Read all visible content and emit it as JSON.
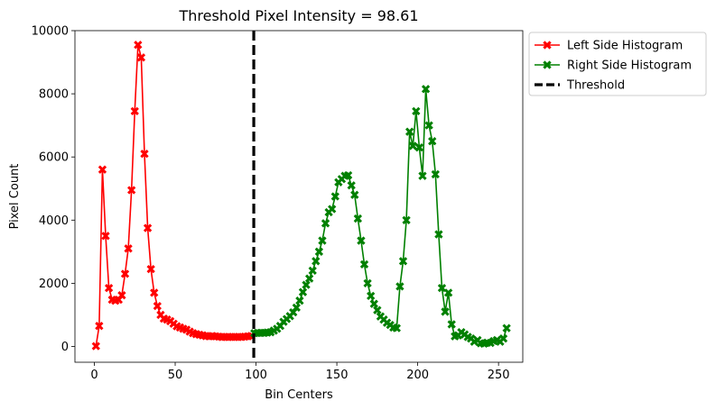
{
  "chart_data": {
    "type": "line",
    "title": "Threshold Pixel Intensity = 98.61",
    "xlabel": "Bin Centers",
    "ylabel": "Pixel Count",
    "xlim": [
      -12,
      265
    ],
    "ylim": [
      -500,
      10000
    ],
    "xticks": [
      0,
      50,
      100,
      150,
      200,
      250
    ],
    "yticks": [
      0,
      2000,
      4000,
      6000,
      8000,
      10000
    ],
    "threshold": 98.61,
    "legend_position": "outside-upper-right",
    "colors": {
      "left": "#ff0000",
      "right": "#008000",
      "threshold": "#000000"
    },
    "series": [
      {
        "name": "Left Side Histogram",
        "color": "#ff0000",
        "marker": "X",
        "x": [
          1,
          3,
          5,
          7,
          9,
          11,
          13,
          15,
          17,
          19,
          21,
          23,
          25,
          27,
          29,
          31,
          33,
          35,
          37,
          39,
          41,
          43,
          45,
          47,
          49,
          51,
          53,
          55,
          57,
          59,
          61,
          63,
          65,
          67,
          69,
          71,
          73,
          75,
          77,
          79,
          81,
          83,
          85,
          87,
          89,
          91,
          93,
          95,
          97
        ],
        "y": [
          10,
          650,
          5600,
          3500,
          1850,
          1480,
          1450,
          1480,
          1620,
          2300,
          3100,
          4950,
          7450,
          9550,
          9150,
          6100,
          3750,
          2450,
          1700,
          1280,
          1000,
          880,
          850,
          800,
          720,
          640,
          600,
          560,
          530,
          470,
          420,
          390,
          370,
          350,
          330,
          320,
          330,
          320,
          310,
          300,
          300,
          300,
          300,
          300,
          300,
          300,
          310,
          320,
          330
        ]
      },
      {
        "name": "Right Side Histogram",
        "color": "#008000",
        "marker": "X",
        "x": [
          99,
          101,
          103,
          105,
          107,
          109,
          111,
          113,
          115,
          117,
          119,
          121,
          123,
          125,
          127,
          129,
          131,
          133,
          135,
          137,
          139,
          141,
          143,
          145,
          147,
          149,
          151,
          153,
          155,
          157,
          159,
          161,
          163,
          165,
          167,
          169,
          171,
          173,
          175,
          177,
          179,
          181,
          183,
          185,
          187,
          189,
          191,
          193,
          195,
          197,
          199,
          201,
          203,
          205,
          207,
          209,
          211,
          213,
          215,
          217,
          219,
          221,
          223,
          225,
          227,
          229,
          231,
          233,
          235,
          237,
          239,
          241,
          243,
          245,
          247,
          249,
          251,
          253,
          255
        ],
        "y": [
          420,
          430,
          430,
          430,
          440,
          450,
          500,
          560,
          650,
          780,
          870,
          960,
          1080,
          1230,
          1450,
          1720,
          1950,
          2150,
          2400,
          2700,
          3000,
          3350,
          3900,
          4250,
          4350,
          4750,
          5200,
          5300,
          5400,
          5420,
          5100,
          4800,
          4050,
          3350,
          2600,
          2000,
          1600,
          1350,
          1150,
          950,
          850,
          750,
          680,
          600,
          580,
          1900,
          2700,
          4000,
          6800,
          6350,
          7450,
          6300,
          5400,
          8150,
          7000,
          6500,
          5450,
          3550,
          1850,
          1100,
          1700,
          700,
          320,
          350,
          450,
          380,
          300,
          250,
          150,
          200,
          100,
          90,
          120,
          110,
          170,
          200,
          150,
          250,
          580
        ]
      }
    ],
    "legend": [
      {
        "label": "Left Side Histogram",
        "style": "line-marker",
        "color": "#ff0000"
      },
      {
        "label": "Right Side Histogram",
        "style": "line-marker",
        "color": "#008000"
      },
      {
        "label": "Threshold",
        "style": "dashed",
        "color": "#000000"
      }
    ]
  }
}
